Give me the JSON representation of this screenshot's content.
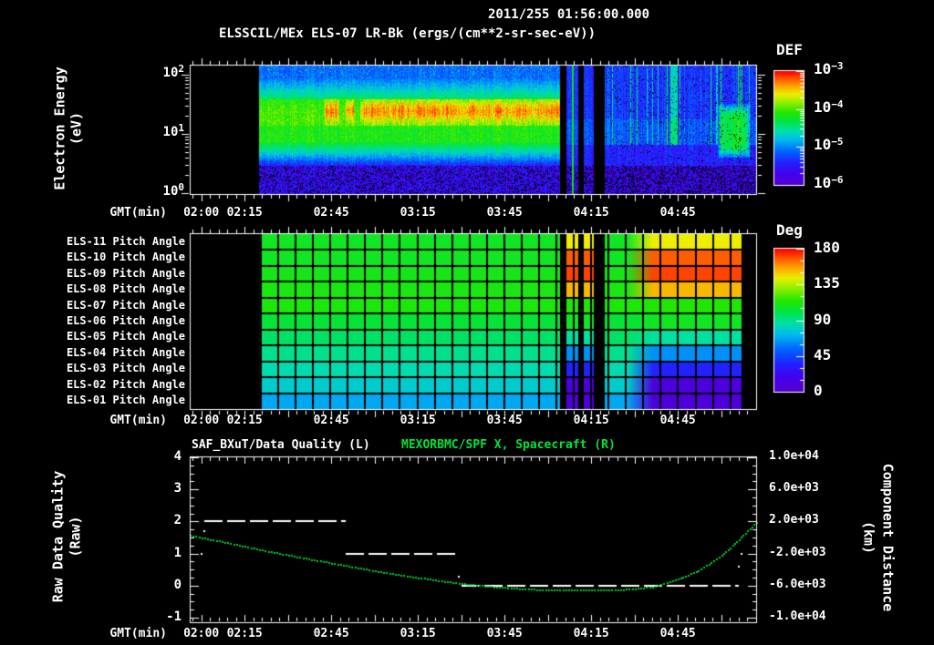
{
  "colors": {
    "background": "#000000",
    "text_white": "#ffffff",
    "title_green": "#00e539",
    "curve_green": "#00d128",
    "grid_black": "#000000"
  },
  "header": {
    "line1": "2011/255 01:56:00.000",
    "line2": "ELSSCIL/MEx ELS-07 LR-Bk  (ergs/(cm**2-sr-sec-eV))"
  },
  "gmt_label": "GMT(min)",
  "time_ticks": [
    {
      "label": "02:00"
    },
    {
      "label": "02:15"
    },
    {
      "label": "02:45"
    },
    {
      "label": "03:15"
    },
    {
      "label": "03:45"
    },
    {
      "label": "04:15"
    },
    {
      "label": "04:45"
    }
  ],
  "panel1": {
    "ylabel_line1": "Electron Energy",
    "ylabel_line2": "(eV)",
    "yticks": [
      {
        "base": "10",
        "exp": "2",
        "value": 100
      },
      {
        "base": "10",
        "exp": "1",
        "value": 10
      },
      {
        "base": "10",
        "exp": "0",
        "value": 1
      }
    ],
    "colorbar": {
      "title": "DEF",
      "ticks": [
        {
          "base": "10",
          "exp": "-3"
        },
        {
          "base": "10",
          "exp": "-4"
        },
        {
          "base": "10",
          "exp": "-5"
        },
        {
          "base": "10",
          "exp": "-6"
        }
      ]
    }
  },
  "panel2": {
    "row_labels": [
      "ELS-11 Pitch Angle",
      "ELS-10 Pitch Angle",
      "ELS-09 Pitch Angle",
      "ELS-08 Pitch Angle",
      "ELS-07 Pitch Angle",
      "ELS-06 Pitch Angle",
      "ELS-05 Pitch Angle",
      "ELS-04 Pitch Angle",
      "ELS-03 Pitch Angle",
      "ELS-02 Pitch Angle",
      "ELS-01 Pitch Angle"
    ],
    "colorbar": {
      "title": "Deg",
      "ticks": [
        "180",
        "135",
        "90",
        "45",
        "0"
      ]
    }
  },
  "panel3": {
    "title_left": "SAF_BXuT/Data Quality (L)",
    "title_right": "MEXORBMC/SPF X, Spacecraft (R)",
    "ylabel_left_line1": "Raw Data Quality",
    "ylabel_left_line2": "(Raw)",
    "ylabel_right_line1": "Component Distance",
    "ylabel_right_line2": "(km)",
    "yticks_left": [
      "4",
      "3",
      "2",
      "1",
      "0",
      "-1"
    ],
    "yticks_right": [
      "1.0e+04",
      "6.0e+03",
      "2.0e+03",
      "-2.0e+03",
      "-6.0e+03",
      "-1.0e+04"
    ]
  },
  "chart_data": [
    {
      "type": "heatmap",
      "panel": "electron_energy_spectrogram",
      "title": "ELSSCIL/MEx ELS-07 LR-Bk (ergs/(cm**2-sr-sec-eV))",
      "start_time": "2011/255 01:56:00.000",
      "xlabel": "GMT(min)",
      "x_tick_labels": [
        "02:00",
        "02:15",
        "02:45",
        "03:15",
        "03:45",
        "04:15",
        "04:45"
      ],
      "x_range": [
        "01:56",
        "05:12"
      ],
      "ylabel": "Electron Energy (eV)",
      "y_scale": "log",
      "y_range_ev": [
        1,
        148
      ],
      "colorbar": {
        "title": "DEF",
        "units": "ergs/(cm**2-sr-sec-eV)",
        "scale": "log",
        "min": 1e-06,
        "max": 0.001
      },
      "data_start": "02:20",
      "features": [
        {
          "interval": "02:20-02:43",
          "energy_ev": [
            7,
            35
          ],
          "def": 0.0001,
          "desc": "green band without hot core"
        },
        {
          "interval": "02:43-04:03",
          "energy_ev": [
            10,
            28
          ],
          "def": 0.0004,
          "desc": "bright yellow-orange core inside green band"
        },
        {
          "interval": "04:04-04:19",
          "desc": "three black data gaps with narrow data columns between"
        },
        {
          "interval": "04:19-05:07",
          "energy_ev": [
            1,
            148
          ],
          "def": 3e-06,
          "desc": "low flux blue/violet background with faint cyan streaks"
        },
        {
          "interval": "04:52-05:03",
          "energy_ev": [
            3,
            25
          ],
          "def": 0.0001,
          "desc": "isolated green patch at low energy"
        }
      ]
    },
    {
      "type": "heatmap",
      "panel": "pitch_angle",
      "detectors": [
        "ELS-11",
        "ELS-10",
        "ELS-09",
        "ELS-08",
        "ELS-07",
        "ELS-06",
        "ELS-05",
        "ELS-04",
        "ELS-03",
        "ELS-02",
        "ELS-01"
      ],
      "units": "Deg",
      "range": [
        0,
        180
      ],
      "xlabel": "GMT(min)",
      "data_start": "02:20",
      "data_end": "05:07",
      "pitch_deg_early": [
        108,
        108,
        110,
        112,
        113,
        103,
        96,
        90,
        85,
        79,
        68
      ],
      "pitch_deg_late": [
        144,
        167,
        171,
        153,
        115,
        108,
        88,
        63,
        36,
        9,
        7
      ],
      "transition_interval": "04:27-04:36",
      "gaps": [
        "04:04-04:06",
        "04:10-04:12",
        "04:16-04:19"
      ]
    },
    {
      "type": "line",
      "panel": "quality_and_distance",
      "title_left": "SAF_BXuT/Data Quality (L)",
      "title_right": "MEXORBMC/SPF X, Spacecraft (R)",
      "xlabel": "GMT(min)",
      "ylabel_left": "Raw Data Quality (Raw)",
      "ylim_left": [
        -1,
        4
      ],
      "ylabel_right": "Component Distance (km)",
      "ylim_right": [
        -10000,
        10000
      ],
      "series": [
        {
          "name": "Raw Data Quality",
          "axis": "left",
          "style": "dashed",
          "color": "#ffffff",
          "segments": [
            {
              "t0": "02:01",
              "t1": "02:50",
              "value": 2
            },
            {
              "t0": "02:50",
              "t1": "03:29",
              "value": 1
            },
            {
              "t0": "03:30",
              "t1": "05:06",
              "value": 0
            }
          ],
          "points": [
            {
              "t": "02:01",
              "value": 1.7
            },
            {
              "t": "02:00",
              "value": 1.0
            },
            {
              "t": "03:29",
              "value": 0.28
            },
            {
              "t": "05:07",
              "value": 1.0
            },
            {
              "t": "05:06",
              "value": 0.58
            }
          ]
        },
        {
          "name": "Spacecraft X",
          "axis": "right",
          "style": "dotted",
          "color": "#00d128",
          "points_km": [
            {
              "t": "01:56",
              "km": 320
            },
            {
              "t": "02:09",
              "km": -600
            },
            {
              "t": "02:25",
              "km": -1800
            },
            {
              "t": "02:41",
              "km": -2880
            },
            {
              "t": "02:57",
              "km": -3920
            },
            {
              "t": "03:12",
              "km": -4800
            },
            {
              "t": "03:28",
              "km": -5600
            },
            {
              "t": "03:41",
              "km": -6080
            },
            {
              "t": "03:53",
              "km": -6400
            },
            {
              "t": "04:06",
              "km": -6520
            },
            {
              "t": "04:19",
              "km": -6520
            },
            {
              "t": "04:28",
              "km": -6400
            },
            {
              "t": "04:36",
              "km": -6080
            },
            {
              "t": "04:44",
              "km": -5280
            },
            {
              "t": "04:52",
              "km": -4080
            },
            {
              "t": "05:00",
              "km": -2200
            },
            {
              "t": "05:06",
              "km": -200
            },
            {
              "t": "05:12",
              "km": 1920
            }
          ]
        }
      ]
    }
  ]
}
